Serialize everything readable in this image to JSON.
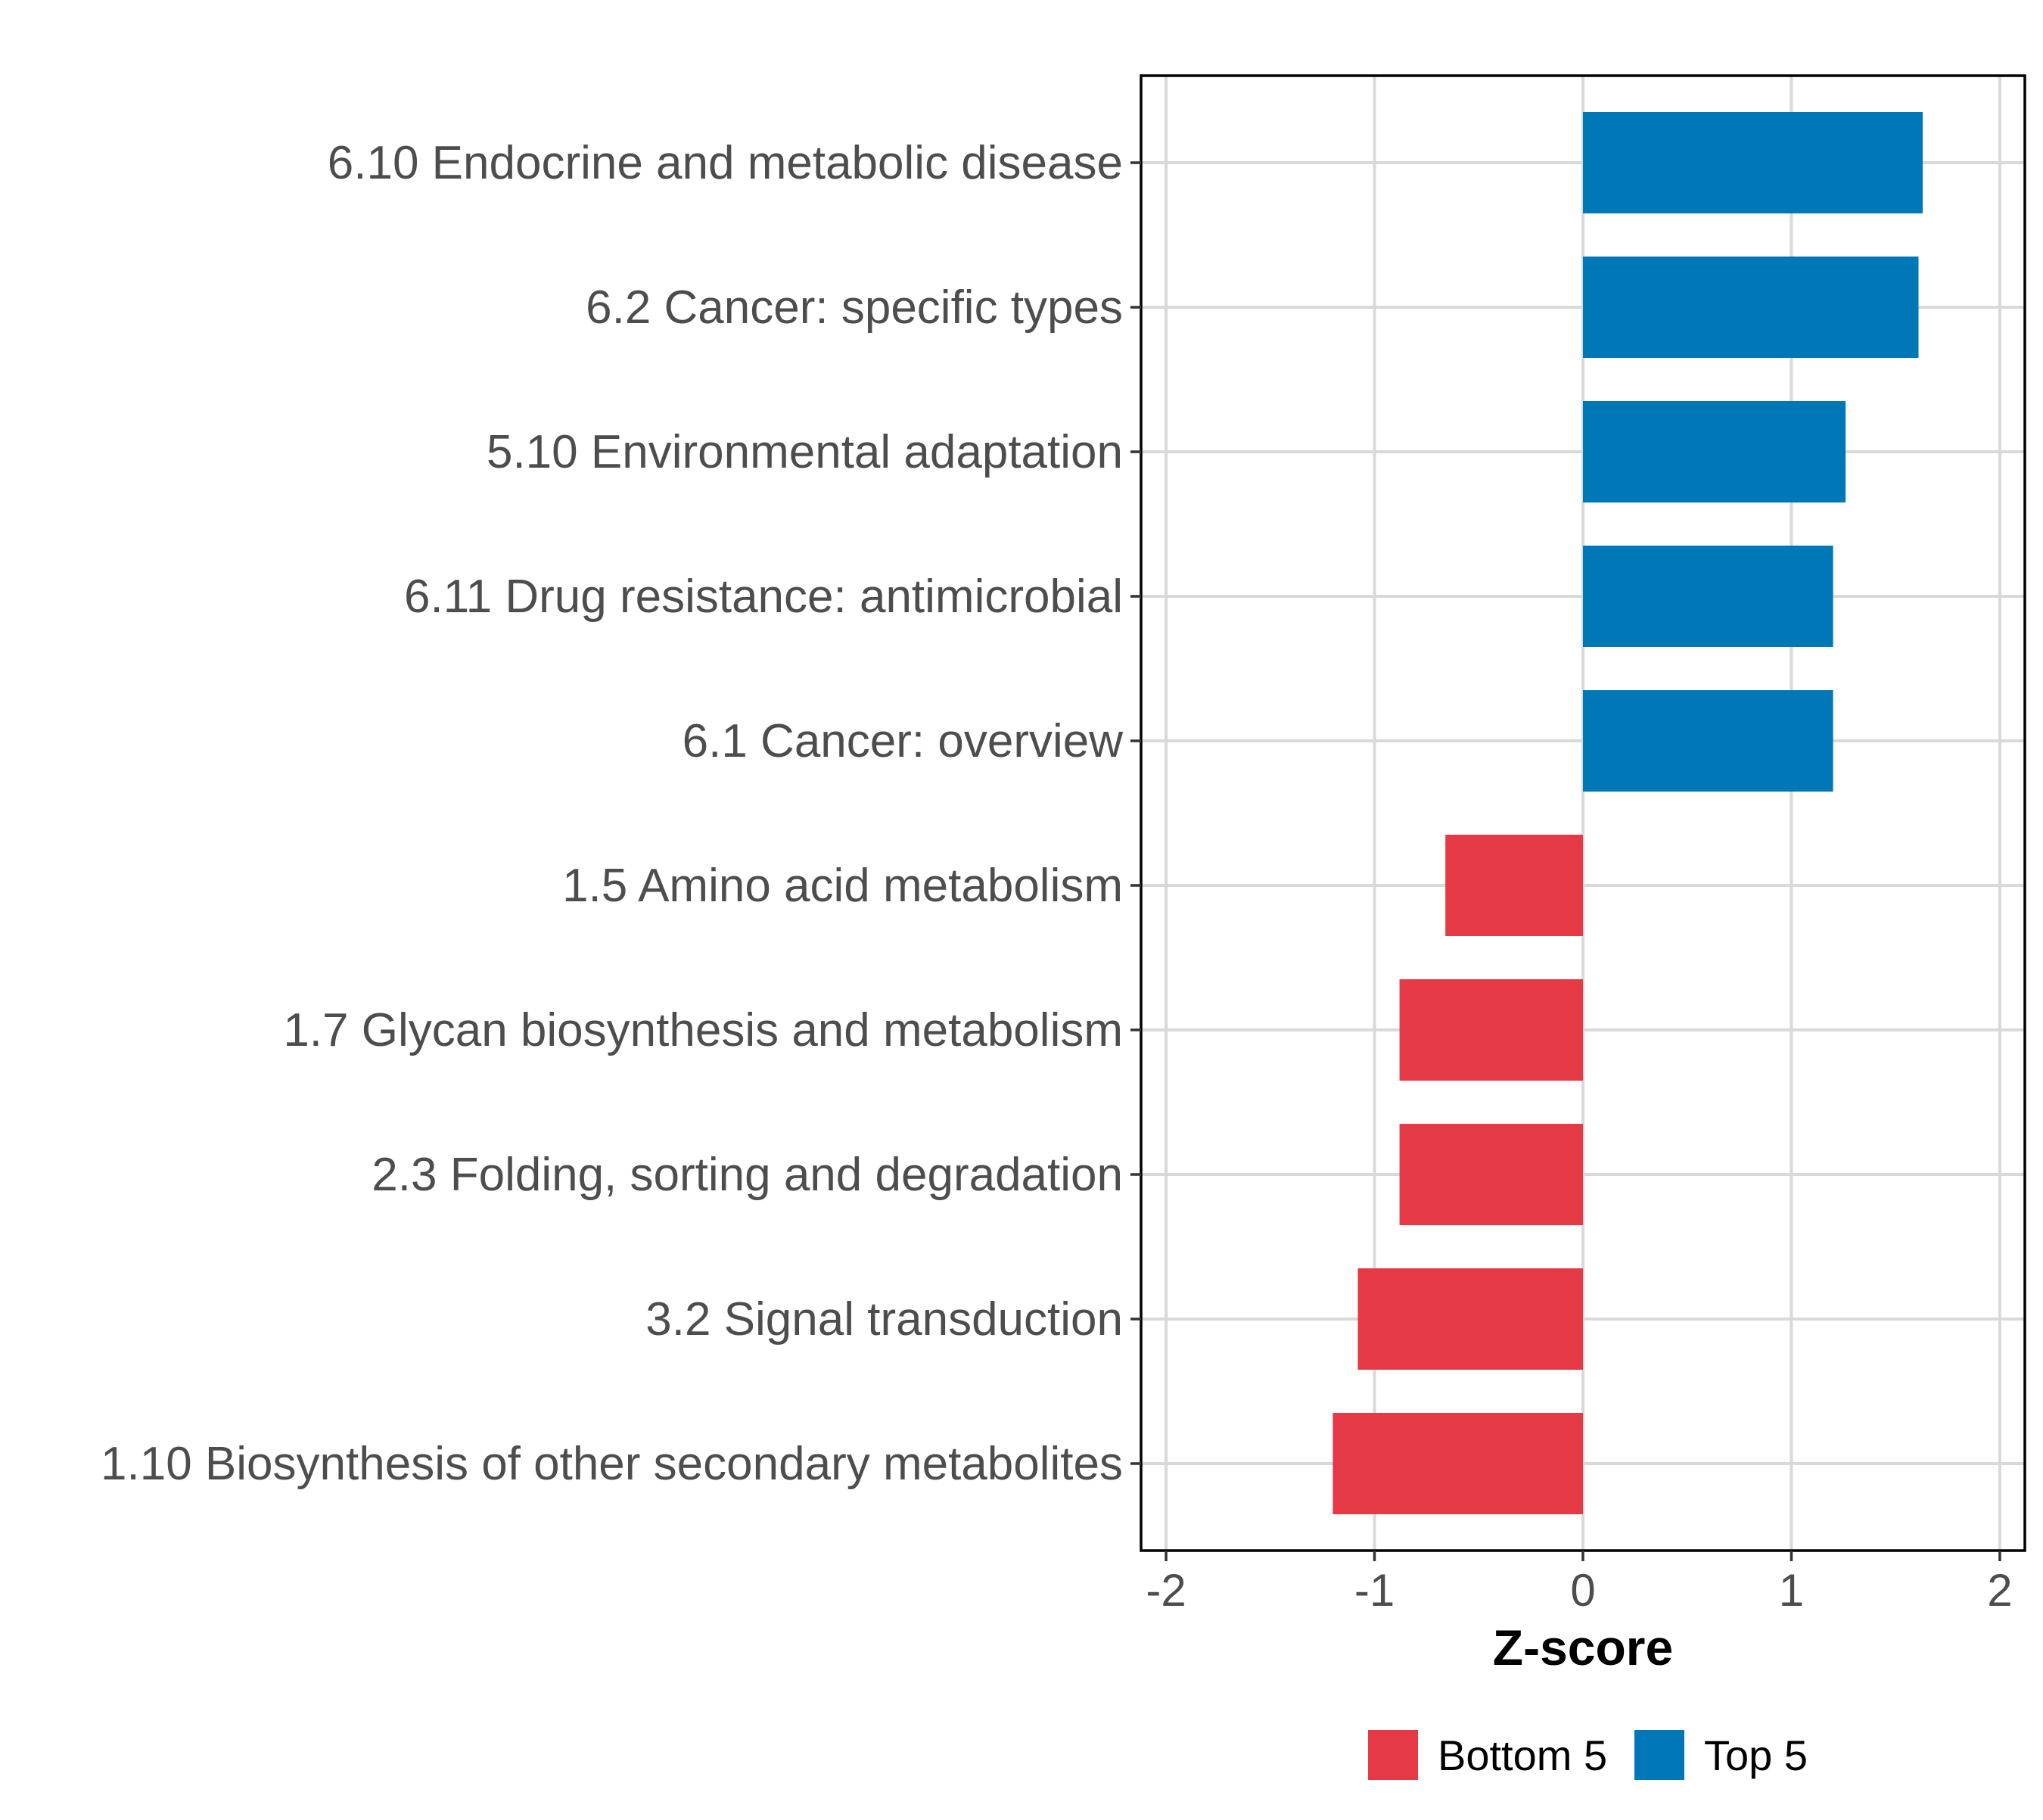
{
  "chart_data": {
    "type": "bar",
    "orientation": "horizontal",
    "title": "",
    "xlabel": "Z-score",
    "ylabel": "",
    "xlim": [
      -2.12,
      2.12
    ],
    "xticks": [
      -2,
      -1,
      0,
      1,
      2
    ],
    "xtick_labels": [
      "-2",
      "-1",
      "0",
      "1",
      "2"
    ],
    "grid": true,
    "legend_position": "bottom",
    "legend": [
      {
        "name": "Bottom 5",
        "color": "#E63946"
      },
      {
        "name": "Top 5",
        "color": "#0077B6"
      }
    ],
    "categories": [
      "6.10 Endocrine and metabolic disease",
      "6.2 Cancer: specific types",
      "5.10 Environmental adaptation",
      "6.11 Drug resistance: antimicrobial",
      "6.1 Cancer: overview",
      "1.5 Amino acid metabolism",
      "1.7 Glycan biosynthesis and metabolism",
      "2.3 Folding, sorting and degradation",
      "3.2 Signal transduction",
      "1.10 Biosynthesis of other secondary metabolites"
    ],
    "values": [
      1.63,
      1.61,
      1.26,
      1.2,
      1.2,
      -0.66,
      -0.88,
      -0.88,
      -1.08,
      -1.2
    ],
    "groups": [
      "Top 5",
      "Top 5",
      "Top 5",
      "Top 5",
      "Top 5",
      "Bottom 5",
      "Bottom 5",
      "Bottom 5",
      "Bottom 5",
      "Bottom 5"
    ]
  }
}
